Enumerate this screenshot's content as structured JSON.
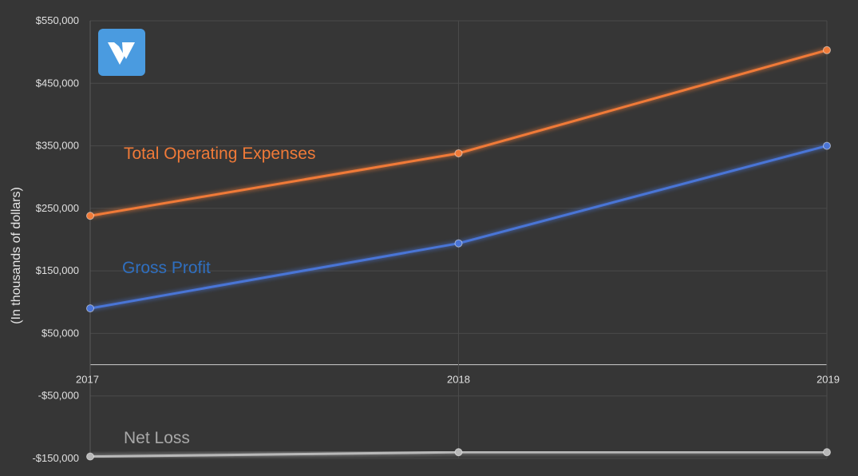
{
  "chart_data": {
    "type": "line",
    "x": [
      "2017",
      "2018",
      "2019"
    ],
    "ylabel": "(In thousands of dollars)",
    "ylim": [
      -150000,
      550000
    ],
    "yticks": [
      {
        "value": 550000,
        "label": "$550,000"
      },
      {
        "value": 450000,
        "label": "$450,000"
      },
      {
        "value": 350000,
        "label": "$350,000"
      },
      {
        "value": 250000,
        "label": "$250,000"
      },
      {
        "value": 150000,
        "label": "$150,000"
      },
      {
        "value": 50000,
        "label": "$50,000"
      },
      {
        "value": -50000,
        "label": "-$50,000"
      },
      {
        "value": -150000,
        "label": "-$150,000"
      }
    ],
    "grid": true,
    "series": [
      {
        "name": "Total Operating Expenses",
        "values": [
          238000,
          338000,
          503000
        ],
        "color": "#f07a38"
      },
      {
        "name": "Gross Profit",
        "values": [
          90000,
          194000,
          350000
        ],
        "color": "#4a74d6"
      },
      {
        "name": "Net Loss",
        "values": [
          -147000,
          -140000,
          -140000
        ],
        "color": "#b8b8b8"
      }
    ],
    "series_label_colors": [
      "#f07a38",
      "#2f6fc0",
      "#a8a8a8"
    ]
  },
  "logo": {
    "icon": "v-logo-icon"
  }
}
